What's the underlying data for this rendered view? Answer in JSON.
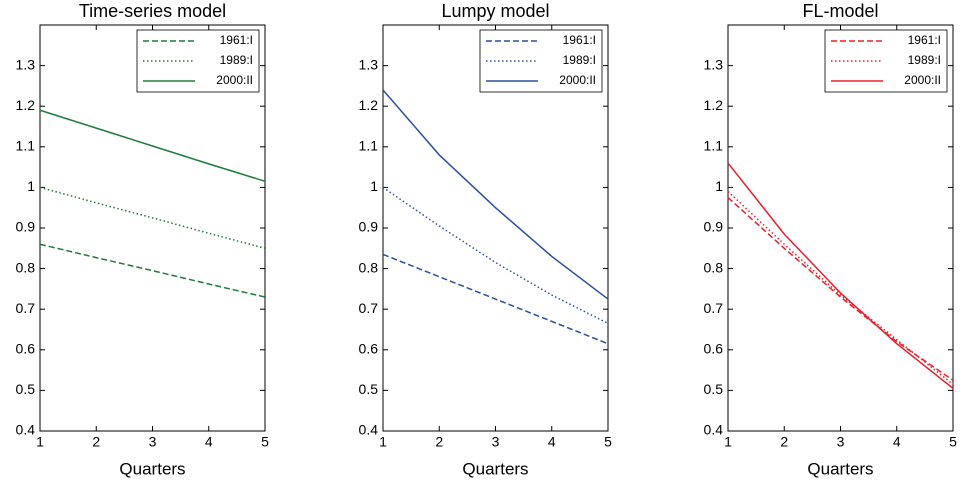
{
  "chart_data": [
    {
      "type": "line",
      "title": "Time-series model",
      "xlabel": "Quarters",
      "x": [
        1,
        2,
        3,
        4,
        5
      ],
      "xlim": [
        1,
        5
      ],
      "xticks": [
        1,
        2,
        3,
        4,
        5
      ],
      "ylim": [
        0.4,
        1.4
      ],
      "yticks": [
        0.4,
        0.5,
        0.6,
        0.7,
        0.8,
        0.9,
        1,
        1.1,
        1.2,
        1.3
      ],
      "legend": "upper right",
      "series": [
        {
          "name": "1961:I",
          "color": "#1e7b3c",
          "linestyle": "dashed",
          "values": [
            0.86,
            0.827,
            0.795,
            0.762,
            0.73
          ]
        },
        {
          "name": "1989:I",
          "color": "#1e7b3c",
          "linestyle": "dotted",
          "values": [
            1.0,
            0.962,
            0.925,
            0.887,
            0.85
          ]
        },
        {
          "name": "2000:II",
          "color": "#1e7b3c",
          "linestyle": "solid",
          "values": [
            1.19,
            1.146,
            1.102,
            1.058,
            1.015
          ]
        }
      ]
    },
    {
      "type": "line",
      "title": "Lumpy model",
      "xlabel": "Quarters",
      "x": [
        1,
        2,
        3,
        4,
        5
      ],
      "xlim": [
        1,
        5
      ],
      "xticks": [
        1,
        2,
        3,
        4,
        5
      ],
      "ylim": [
        0.4,
        1.4
      ],
      "yticks": [
        0.4,
        0.5,
        0.6,
        0.7,
        0.8,
        0.9,
        1,
        1.1,
        1.2,
        1.3
      ],
      "legend": "upper right",
      "series": [
        {
          "name": "1961:I",
          "color": "#2b4ea2",
          "linestyle": "dashed",
          "values": [
            0.835,
            0.78,
            0.725,
            0.67,
            0.615
          ]
        },
        {
          "name": "1989:I",
          "color": "#2b4ea2",
          "linestyle": "dotted",
          "values": [
            1.0,
            0.905,
            0.815,
            0.735,
            0.665
          ]
        },
        {
          "name": "2000:II",
          "color": "#2b4ea2",
          "linestyle": "solid",
          "values": [
            1.24,
            1.08,
            0.95,
            0.83,
            0.725
          ]
        }
      ]
    },
    {
      "type": "line",
      "title": "FL-model",
      "xlabel": "Quarters",
      "x": [
        1,
        2,
        3,
        4,
        5
      ],
      "xlim": [
        1,
        5
      ],
      "xticks": [
        1,
        2,
        3,
        4,
        5
      ],
      "ylim": [
        0.4,
        1.4
      ],
      "yticks": [
        0.4,
        0.5,
        0.6,
        0.7,
        0.8,
        0.9,
        1,
        1.1,
        1.2,
        1.3
      ],
      "legend": "upper right",
      "series": [
        {
          "name": "1961:I",
          "color": "#e8202a",
          "linestyle": "dashed",
          "values": [
            0.975,
            0.85,
            0.73,
            0.62,
            0.525
          ]
        },
        {
          "name": "1989:I",
          "color": "#e8202a",
          "linestyle": "dotted",
          "values": [
            0.99,
            0.86,
            0.735,
            0.625,
            0.515
          ]
        },
        {
          "name": "2000:II",
          "color": "#e8202a",
          "linestyle": "solid",
          "values": [
            1.06,
            0.885,
            0.74,
            0.615,
            0.505
          ]
        }
      ]
    }
  ]
}
